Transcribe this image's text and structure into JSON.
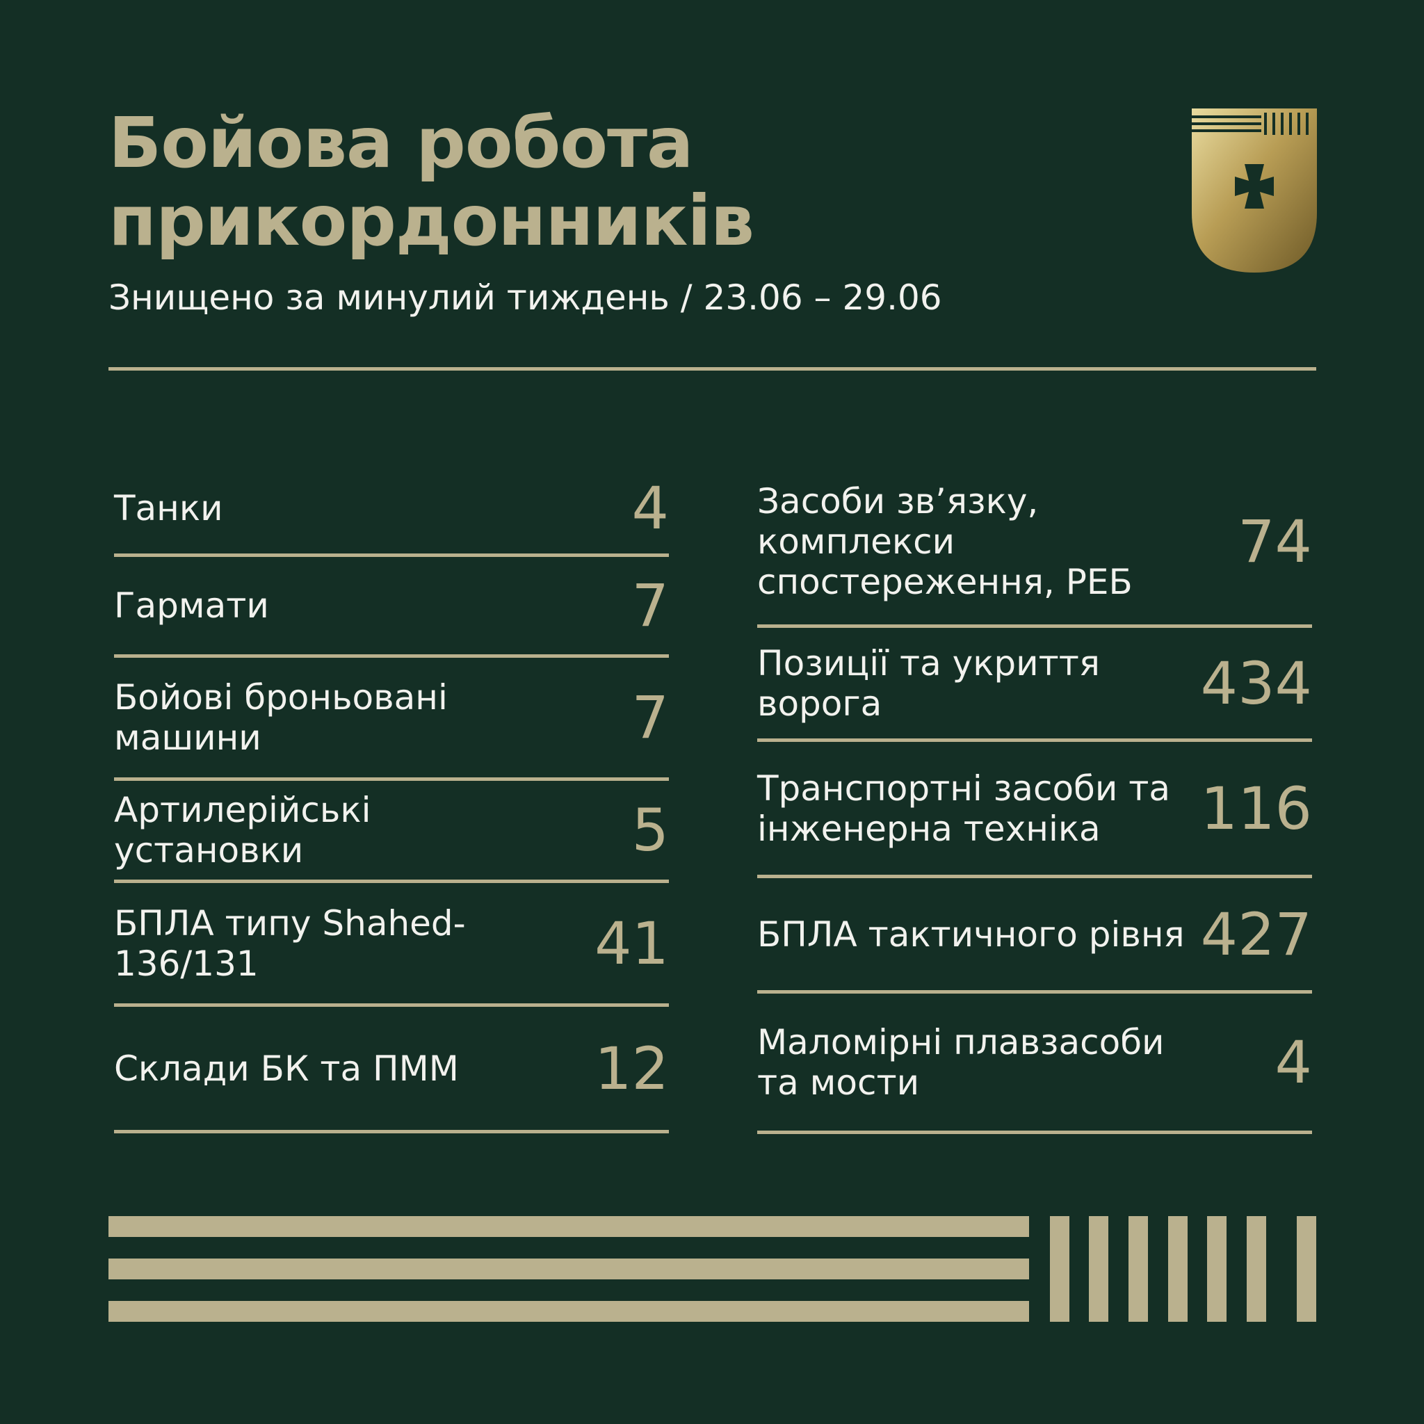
{
  "header": {
    "title_line1": "Бойова робота",
    "title_line2": "прикордонників",
    "subtitle": "Знищено за минулий тиждень  / 23.06 – 29.06"
  },
  "left_items": [
    {
      "label": "Танки",
      "value": "4"
    },
    {
      "label": "Гармати",
      "value": "7"
    },
    {
      "label": "Бойові броньовані машини",
      "value": "7"
    },
    {
      "label": "Артилерійські установки",
      "value": "5"
    },
    {
      "label": "БПЛА типу Shahed-136/131",
      "value": "41"
    },
    {
      "label": "Склади БК та ПММ",
      "value": "12"
    }
  ],
  "right_items": [
    {
      "label": "Засоби зв’язку, комплекси спостереження, РЕБ",
      "value": "74"
    },
    {
      "label": "Позиції та укриття ворога",
      "value": "434"
    },
    {
      "label": "Транспортні засоби та інженерна техніка",
      "value": "116"
    },
    {
      "label": "БПЛА тактичного рівня",
      "value": "427"
    },
    {
      "label": "Маломірні плавзасоби та мости",
      "value": "4"
    }
  ],
  "colors": {
    "background": "#142f25",
    "accent": "#bab18e",
    "text": "#f2f2ee"
  },
  "icons": {
    "emblem": "border-guard-shield-icon"
  }
}
